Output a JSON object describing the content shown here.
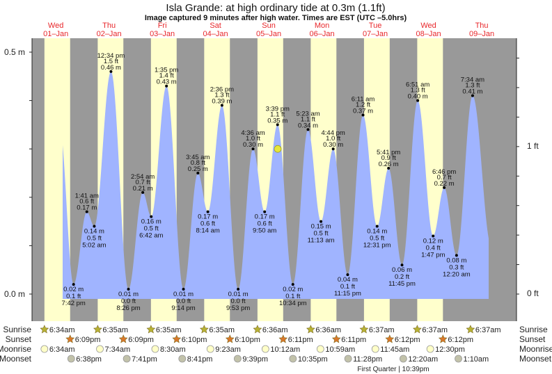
{
  "header": {
    "title": "Isla Grande: at high  ordinary tide at 0.3m (1.1ft)",
    "subtitle": "Image captured 9 minutes after high water. Times are EST (UTC –5.0hrs)"
  },
  "colors": {
    "day": "#ffffcc",
    "night": "#999999",
    "tide": "#a0b4ff",
    "day_label": "#e8262a",
    "sunrise_icon": "#b8b234",
    "sunset_icon": "#d9782a",
    "moonrise_icon": "#ffffc8",
    "moonset_icon": "#c2c2aa",
    "current_marker": "#e6e63a"
  },
  "row_labels": {
    "sunrise": "Sunrise",
    "sunset": "Sunset",
    "moonrise": "Moonrise",
    "moonset": "Moonset"
  },
  "moon_phase": "First Quarter | 10:39pm",
  "chart_data": {
    "type": "area",
    "title": "Isla Grande: at high  ordinary tide at 0.3m (1.1ft)",
    "y_axis_left": {
      "unit": "m",
      "range": [
        0.0,
        0.5
      ],
      "tick_labels": [
        "0.5 m",
        "0.0 m"
      ]
    },
    "y_axis_right": {
      "unit": "ft",
      "tick_labels": [
        "1 ft",
        "0 ft"
      ],
      "minor_step_ft": 0.2
    },
    "current": {
      "label": "at high",
      "height_m": 0.3,
      "height_ft": 1.1,
      "minutes_after_high": 9
    },
    "days": [
      {
        "dow": "Wed",
        "date": "01–Jan",
        "sunrise": "6:34am",
        "sunset": "6:09pm",
        "moonrise": "6:34am",
        "moonset": "6:38pm"
      },
      {
        "dow": "Thu",
        "date": "02–Jan",
        "sunrise": "6:35am",
        "sunset": "6:09pm",
        "moonrise": "7:34am",
        "moonset": "7:41pm"
      },
      {
        "dow": "Fri",
        "date": "03–Jan",
        "sunrise": "6:35am",
        "sunset": "6:10pm",
        "moonrise": "8:30am",
        "moonset": "8:41pm"
      },
      {
        "dow": "Sat",
        "date": "04–Jan",
        "sunrise": "6:35am",
        "sunset": "6:10pm",
        "moonrise": "9:23am",
        "moonset": "9:39pm"
      },
      {
        "dow": "Sun",
        "date": "05–Jan",
        "sunrise": "6:36am",
        "sunset": "6:11pm",
        "moonrise": "10:12am",
        "moonset": "10:35pm"
      },
      {
        "dow": "Mon",
        "date": "06–Jan",
        "sunrise": "6:36am",
        "sunset": "6:11pm",
        "moonrise": "10:59am",
        "moonset": "11:28pm"
      },
      {
        "dow": "Tue",
        "date": "07–Jan",
        "sunrise": "6:37am",
        "sunset": "6:12pm",
        "moonrise": "11:45am",
        "moonset": null
      },
      {
        "dow": "Wed",
        "date": "08–Jan",
        "sunrise": "6:37am",
        "sunset": "6:12pm",
        "moonrise": "12:30pm",
        "moonset": "12:20am"
      },
      {
        "dow": "Thu",
        "date": "09–Jan",
        "sunrise": "6:37am",
        "sunset": null,
        "moonrise": null,
        "moonset": "1:10am"
      }
    ],
    "tides": [
      {
        "day": 0,
        "time": "7:42 pm",
        "type": "low",
        "m": "0.02 m",
        "ft": "0.1 ft",
        "value_m": 0.02
      },
      {
        "day": 1,
        "time": "1:41 am",
        "type": "high",
        "m": "0.17 m",
        "ft": "0.6 ft",
        "value_m": 0.17
      },
      {
        "day": 1,
        "time": "5:02 am",
        "type": "low",
        "m": "0.14 m",
        "ft": "0.5 ft",
        "value_m": 0.14
      },
      {
        "day": 1,
        "time": "12:34 pm",
        "type": "high",
        "m": "0.46 m",
        "ft": "1.5 ft",
        "value_m": 0.46
      },
      {
        "day": 1,
        "time": "8:26 pm",
        "type": "low",
        "m": "0.01 m",
        "ft": "0.0 ft",
        "value_m": 0.01
      },
      {
        "day": 2,
        "time": "2:54 am",
        "type": "high",
        "m": "0.21 m",
        "ft": "0.7 ft",
        "value_m": 0.21
      },
      {
        "day": 2,
        "time": "6:42 am",
        "type": "low",
        "m": "0.16 m",
        "ft": "0.5 ft",
        "value_m": 0.16
      },
      {
        "day": 2,
        "time": "1:35 pm",
        "type": "high",
        "m": "0.43 m",
        "ft": "1.4 ft",
        "value_m": 0.43
      },
      {
        "day": 2,
        "time": "9:14 pm",
        "type": "low",
        "m": "0.01 m",
        "ft": "0.0 ft",
        "value_m": 0.01
      },
      {
        "day": 3,
        "time": "3:45 am",
        "type": "high",
        "m": "0.25 m",
        "ft": "0.8 ft",
        "value_m": 0.25
      },
      {
        "day": 3,
        "time": "8:14 am",
        "type": "low",
        "m": "0.17 m",
        "ft": "0.6 ft",
        "value_m": 0.17
      },
      {
        "day": 3,
        "time": "2:36 pm",
        "type": "high",
        "m": "0.39 m",
        "ft": "1.3 ft",
        "value_m": 0.39
      },
      {
        "day": 3,
        "time": "9:53 pm",
        "type": "low",
        "m": "0.01 m",
        "ft": "0.0 ft",
        "value_m": 0.01
      },
      {
        "day": 4,
        "time": "4:36 am",
        "type": "high",
        "m": "0.30 m",
        "ft": "1.0 ft",
        "value_m": 0.3
      },
      {
        "day": 4,
        "time": "9:50 am",
        "type": "low",
        "m": "0.17 m",
        "ft": "0.6 ft",
        "value_m": 0.17
      },
      {
        "day": 4,
        "time": "3:39 pm",
        "type": "high",
        "m": "0.35 m",
        "ft": "1.1 ft",
        "value_m": 0.35
      },
      {
        "day": 4,
        "time": "10:34 pm",
        "type": "low",
        "m": "0.02 m",
        "ft": "0.1 ft",
        "value_m": 0.02
      },
      {
        "day": 5,
        "time": "5:23 am",
        "type": "high",
        "m": "0.34 m",
        "ft": "1.1 ft",
        "value_m": 0.34
      },
      {
        "day": 5,
        "time": "11:13 am",
        "type": "low",
        "m": "0.15 m",
        "ft": "0.5 ft",
        "value_m": 0.15
      },
      {
        "day": 5,
        "time": "4:44 pm",
        "type": "high",
        "m": "0.30 m",
        "ft": "1.0 ft",
        "value_m": 0.3
      },
      {
        "day": 5,
        "time": "11:15 pm",
        "type": "low",
        "m": "0.04 m",
        "ft": "0.1 ft",
        "value_m": 0.04
      },
      {
        "day": 6,
        "time": "6:11 am",
        "type": "high",
        "m": "0.37 m",
        "ft": "1.2 ft",
        "value_m": 0.37
      },
      {
        "day": 6,
        "time": "12:31 pm",
        "type": "low",
        "m": "0.14 m",
        "ft": "0.5 ft",
        "value_m": 0.14
      },
      {
        "day": 6,
        "time": "5:41 pm",
        "type": "high",
        "m": "0.26 m",
        "ft": "0.9 ft",
        "value_m": 0.26
      },
      {
        "day": 6,
        "time": "11:45 pm",
        "type": "low",
        "m": "0.06 m",
        "ft": "0.2 ft",
        "value_m": 0.06
      },
      {
        "day": 7,
        "time": "6:51 am",
        "type": "high",
        "m": "0.40 m",
        "ft": "1.3 ft",
        "value_m": 0.4
      },
      {
        "day": 7,
        "time": "1:47 pm",
        "type": "low",
        "m": "0.12 m",
        "ft": "0.4 ft",
        "value_m": 0.12
      },
      {
        "day": 7,
        "time": "6:46 pm",
        "type": "high",
        "m": "0.22 m",
        "ft": "0.7 ft",
        "value_m": 0.22
      },
      {
        "day": 8,
        "time": "12:20 am",
        "type": "low",
        "m": "0.08 m",
        "ft": "0.3 ft",
        "value_m": 0.08
      },
      {
        "day": 8,
        "time": "7:34 am",
        "type": "high",
        "m": "0.41 m",
        "ft": "1.3 ft",
        "value_m": 0.41
      }
    ]
  }
}
